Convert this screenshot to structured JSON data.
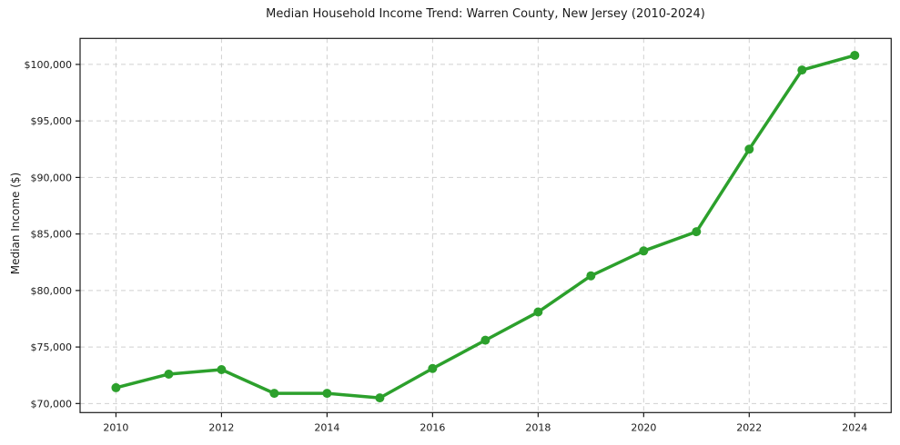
{
  "chart_data": {
    "type": "line",
    "title": "Median Household Income Trend: Warren County, New Jersey (2010-2024)",
    "xlabel": "",
    "ylabel": "Median Income ($)",
    "x": [
      2010,
      2011,
      2012,
      2013,
      2014,
      2015,
      2016,
      2017,
      2018,
      2019,
      2020,
      2021,
      2022,
      2023,
      2024
    ],
    "values": [
      71400,
      72600,
      73000,
      70900,
      70900,
      70500,
      73100,
      75600,
      78100,
      81300,
      83500,
      85200,
      92500,
      99500,
      100800
    ],
    "xlim": [
      2009.32,
      2024.69
    ],
    "ylim": [
      69200,
      102300
    ],
    "xticks": [
      2010,
      2012,
      2014,
      2016,
      2018,
      2020,
      2022,
      2024
    ],
    "xtick_labels": [
      "2010",
      "2012",
      "2014",
      "2016",
      "2018",
      "2020",
      "2022",
      "2024"
    ],
    "yticks": [
      70000,
      75000,
      80000,
      85000,
      90000,
      95000,
      100000
    ],
    "ytick_labels": [
      "$70,000",
      "$75,000",
      "$80,000",
      "$85,000",
      "$90,000",
      "$95,000",
      "$100,000"
    ],
    "grid": true,
    "grid_style": "dashed",
    "legend": false,
    "marker": "circle",
    "colors": {
      "line": "#2ca02c",
      "marker": "#2ca02c",
      "grid": "#d0d0d0",
      "spine": "#1a1a1a",
      "text": "#1a1a1a",
      "background": "#ffffff"
    }
  }
}
